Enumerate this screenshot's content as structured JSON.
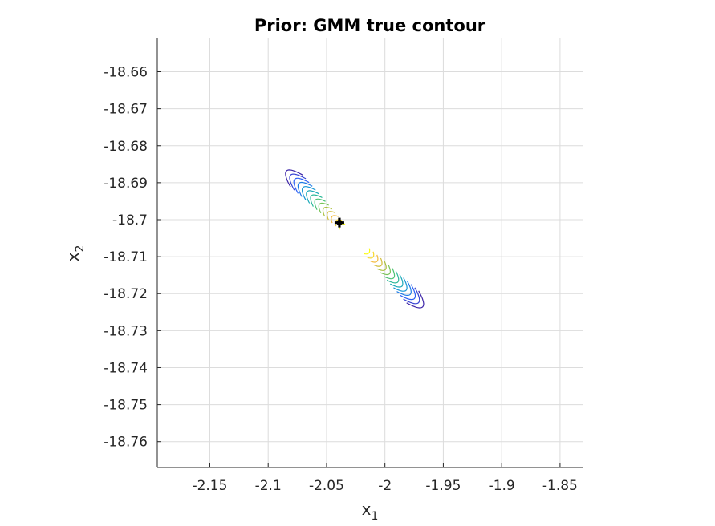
{
  "chart_data": {
    "type": "contour",
    "title": "Prior: GMM true contour",
    "xlabel": {
      "base": "x",
      "sub": "1"
    },
    "ylabel": {
      "base": "x",
      "sub": "2"
    },
    "xlim": [
      -2.195,
      -1.83
    ],
    "ylim": [
      -18.767,
      -18.651
    ],
    "xticks": [
      -2.15,
      -2.1,
      -2.05,
      -2,
      -1.95,
      -1.9,
      -1.85
    ],
    "xtick_labels": [
      "-2.15",
      "-2.1",
      "-2.05",
      "-2",
      "-1.95",
      "-1.9",
      "-1.85"
    ],
    "yticks": [
      -18.66,
      -18.67,
      -18.68,
      -18.69,
      -18.7,
      -18.71,
      -18.72,
      -18.73,
      -18.74,
      -18.75,
      -18.76
    ],
    "ytick_labels": [
      "-18.66",
      "-18.67",
      "-18.68",
      "-18.69",
      "-18.7",
      "-18.71",
      "-18.72",
      "-18.73",
      "-18.74",
      "-18.75",
      "-18.76"
    ],
    "grid": true,
    "colormap": [
      "#3e26a8",
      "#2f5cf7",
      "#148fdd",
      "#1eb4a8",
      "#5bc766",
      "#b8bd36",
      "#f8ba3e",
      "#f9fb15"
    ],
    "contour_levels": 14,
    "contour_center": {
      "x": -2.026,
      "y": -18.7052
    },
    "contour_angle_deg": -45,
    "marker": {
      "x": -2.039,
      "y": -18.7008,
      "color": "#000000"
    }
  }
}
